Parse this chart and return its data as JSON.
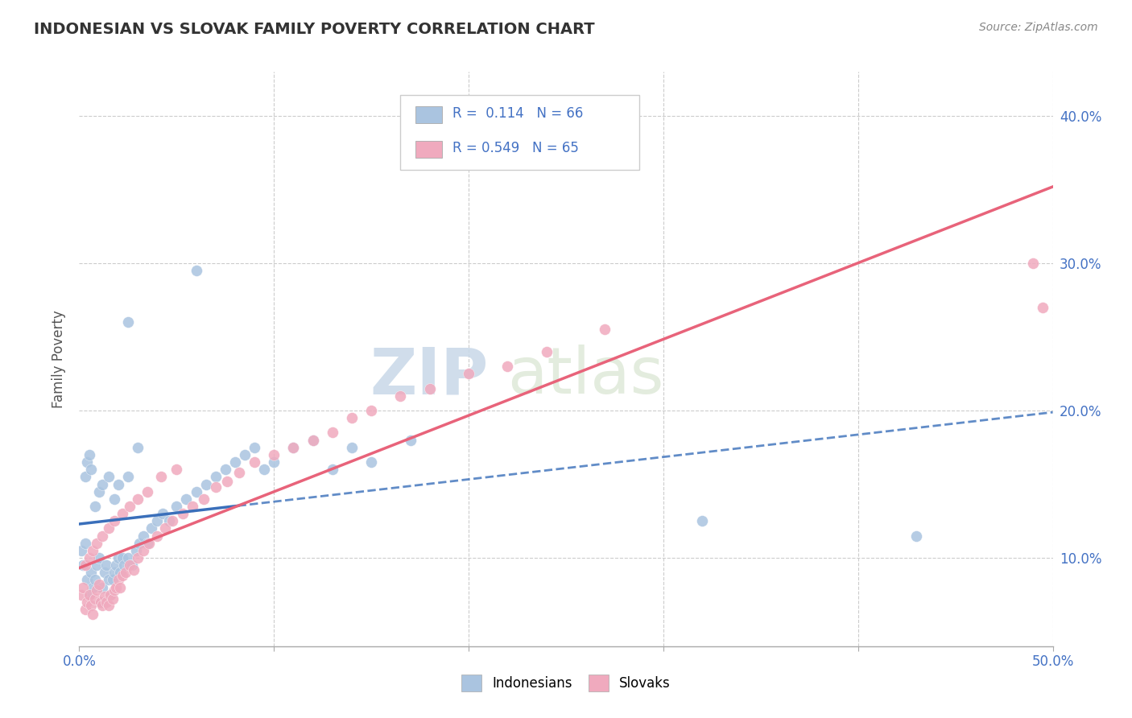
{
  "title": "INDONESIAN VS SLOVAK FAMILY POVERTY CORRELATION CHART",
  "source": "Source: ZipAtlas.com",
  "ylabel": "Family Poverty",
  "xlim": [
    0.0,
    0.5
  ],
  "ylim": [
    0.04,
    0.43
  ],
  "R_blue": 0.114,
  "N_blue": 66,
  "R_pink": 0.549,
  "N_pink": 65,
  "color_blue": "#aac4e0",
  "color_pink": "#f0aabe",
  "color_blue_line": "#3a6fba",
  "color_pink_line": "#e8637a",
  "watermark_zip": "ZIP",
  "watermark_atlas": "atlas",
  "background_color": "#ffffff",
  "indonesian_x": [
    0.001,
    0.002,
    0.003,
    0.004,
    0.005,
    0.006,
    0.007,
    0.008,
    0.009,
    0.01,
    0.011,
    0.012,
    0.013,
    0.014,
    0.015,
    0.016,
    0.017,
    0.018,
    0.019,
    0.02,
    0.021,
    0.022,
    0.023,
    0.025,
    0.027,
    0.029,
    0.031,
    0.033,
    0.035,
    0.037,
    0.04,
    0.043,
    0.046,
    0.05,
    0.055,
    0.06,
    0.065,
    0.07,
    0.075,
    0.08,
    0.085,
    0.09,
    0.095,
    0.1,
    0.11,
    0.12,
    0.13,
    0.14,
    0.15,
    0.17,
    0.003,
    0.004,
    0.005,
    0.006,
    0.008,
    0.01,
    0.012,
    0.015,
    0.018,
    0.02,
    0.025,
    0.03,
    0.32,
    0.43,
    0.025,
    0.06
  ],
  "indonesian_y": [
    0.105,
    0.095,
    0.11,
    0.085,
    0.075,
    0.09,
    0.08,
    0.085,
    0.095,
    0.1,
    0.07,
    0.08,
    0.09,
    0.095,
    0.085,
    0.075,
    0.085,
    0.09,
    0.095,
    0.1,
    0.09,
    0.1,
    0.095,
    0.1,
    0.095,
    0.105,
    0.11,
    0.115,
    0.11,
    0.12,
    0.125,
    0.13,
    0.125,
    0.135,
    0.14,
    0.145,
    0.15,
    0.155,
    0.16,
    0.165,
    0.17,
    0.175,
    0.16,
    0.165,
    0.175,
    0.18,
    0.16,
    0.175,
    0.165,
    0.18,
    0.155,
    0.165,
    0.17,
    0.16,
    0.135,
    0.145,
    0.15,
    0.155,
    0.14,
    0.15,
    0.155,
    0.175,
    0.125,
    0.115,
    0.26,
    0.295
  ],
  "slovak_x": [
    0.001,
    0.002,
    0.003,
    0.004,
    0.005,
    0.006,
    0.007,
    0.008,
    0.009,
    0.01,
    0.011,
    0.012,
    0.013,
    0.014,
    0.015,
    0.016,
    0.017,
    0.018,
    0.019,
    0.02,
    0.021,
    0.022,
    0.024,
    0.026,
    0.028,
    0.03,
    0.033,
    0.036,
    0.04,
    0.044,
    0.048,
    0.053,
    0.058,
    0.064,
    0.07,
    0.076,
    0.082,
    0.09,
    0.1,
    0.11,
    0.12,
    0.13,
    0.14,
    0.15,
    0.165,
    0.18,
    0.2,
    0.22,
    0.24,
    0.27,
    0.003,
    0.005,
    0.007,
    0.009,
    0.012,
    0.015,
    0.018,
    0.022,
    0.026,
    0.03,
    0.035,
    0.042,
    0.05,
    0.49,
    0.495
  ],
  "slovak_y": [
    0.075,
    0.08,
    0.065,
    0.07,
    0.075,
    0.068,
    0.062,
    0.072,
    0.078,
    0.082,
    0.07,
    0.068,
    0.074,
    0.07,
    0.068,
    0.075,
    0.072,
    0.078,
    0.08,
    0.085,
    0.08,
    0.088,
    0.09,
    0.095,
    0.092,
    0.1,
    0.105,
    0.11,
    0.115,
    0.12,
    0.125,
    0.13,
    0.135,
    0.14,
    0.148,
    0.152,
    0.158,
    0.165,
    0.17,
    0.175,
    0.18,
    0.185,
    0.195,
    0.2,
    0.21,
    0.215,
    0.225,
    0.23,
    0.24,
    0.255,
    0.095,
    0.1,
    0.105,
    0.11,
    0.115,
    0.12,
    0.125,
    0.13,
    0.135,
    0.14,
    0.145,
    0.155,
    0.16,
    0.3,
    0.27
  ]
}
